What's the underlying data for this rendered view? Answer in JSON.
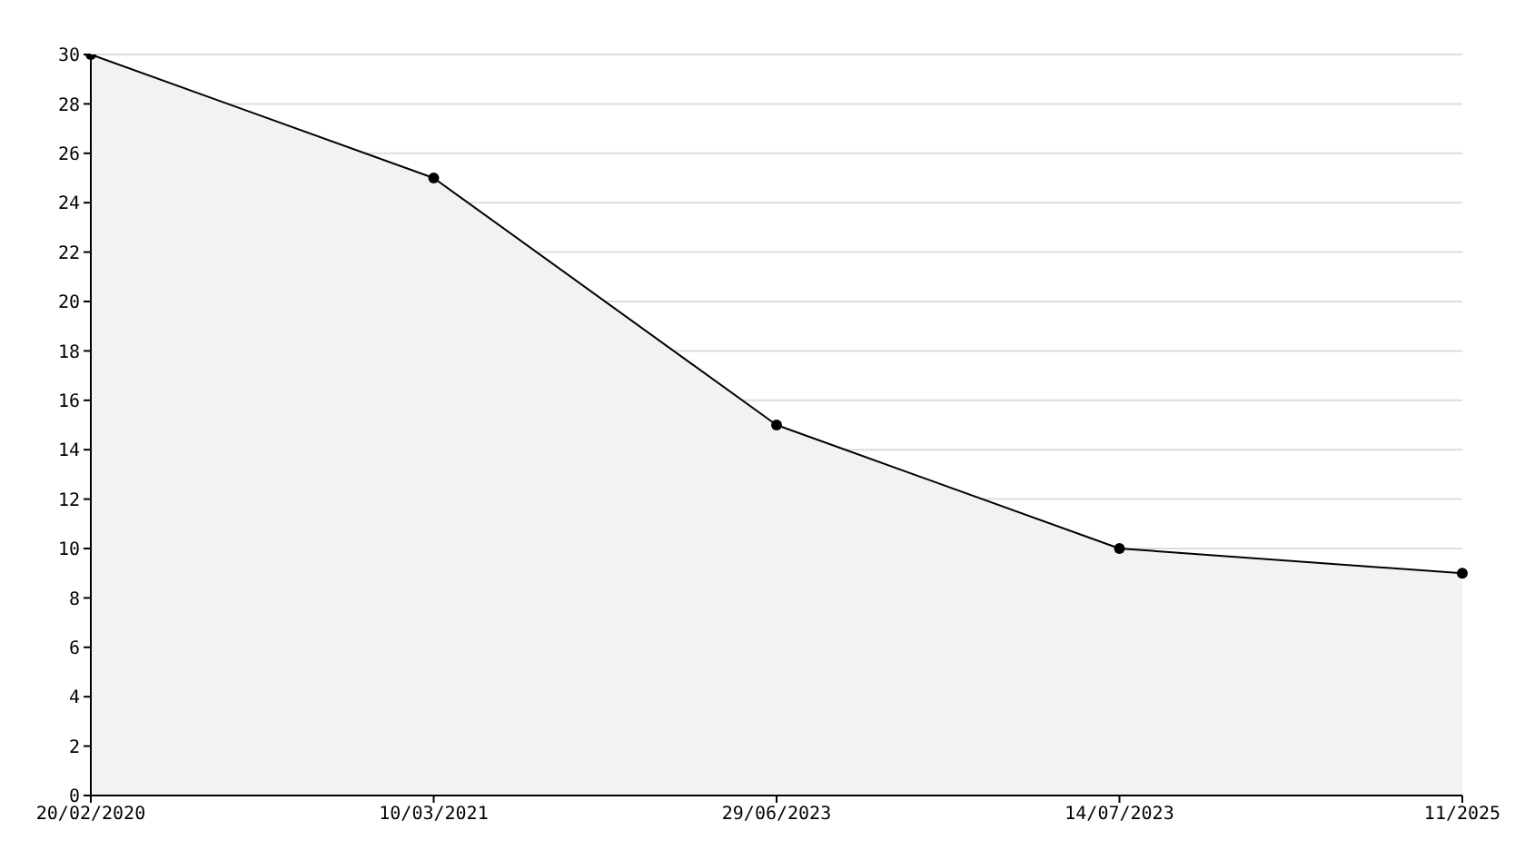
{
  "chart_data": {
    "type": "area",
    "categories": [
      "20/02/2020",
      "10/03/2021",
      "29/06/2023",
      "14/07/2023",
      "11/2025"
    ],
    "series": [
      {
        "color": "#000000",
        "values": [
          30,
          25,
          15,
          10,
          9
        ]
      }
    ],
    "ylim": [
      0,
      30
    ],
    "yticks": [
      0,
      2,
      4,
      6,
      8,
      10,
      12,
      14,
      16,
      18,
      20,
      22,
      24,
      26,
      28,
      30
    ],
    "grid": "y",
    "marker": "circle",
    "line_style": "solid"
  }
}
